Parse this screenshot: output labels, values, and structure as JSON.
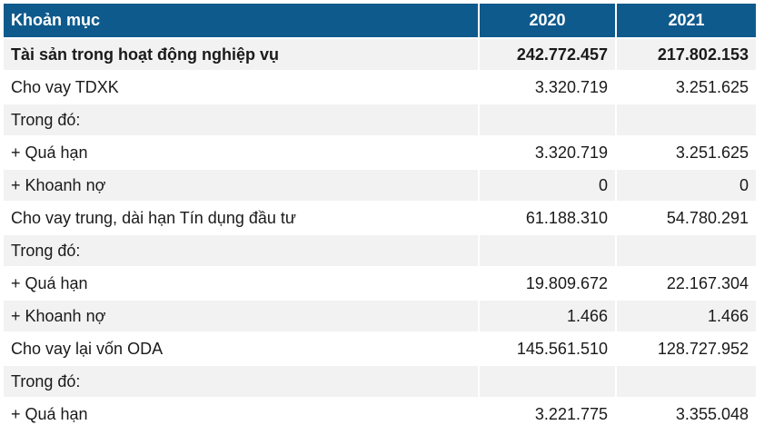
{
  "table": {
    "headers": [
      "Khoản mục",
      "2020",
      "2021"
    ],
    "rows": [
      {
        "label": "Tài sản trong hoạt động nghiệp vụ",
        "y2020": "242.772.457",
        "y2021": "217.802.153",
        "bold": true
      },
      {
        "label": "Cho vay TDXK",
        "y2020": "3.320.719",
        "y2021": "3.251.625"
      },
      {
        "label": "Trong đó:",
        "y2020": "",
        "y2021": ""
      },
      {
        "label": "+ Quá hạn",
        "y2020": "3.320.719",
        "y2021": "3.251.625"
      },
      {
        "label": "+ Khoanh nợ",
        "y2020": "0",
        "y2021": "0"
      },
      {
        "label": "Cho vay trung, dài hạn Tín dụng đầu tư",
        "y2020": "61.188.310",
        "y2021": "54.780.291"
      },
      {
        "label": "Trong đó:",
        "y2020": "",
        "y2021": ""
      },
      {
        "label": "+ Quá hạn",
        "y2020": "19.809.672",
        "y2021": "22.167.304"
      },
      {
        "label": "+ Khoanh nợ",
        "y2020": "1.466",
        "y2021": "1.466"
      },
      {
        "label": "Cho vay lại vốn ODA",
        "y2020": "145.561.510",
        "y2021": "128.727.952"
      },
      {
        "label": "Trong đó:",
        "y2020": "",
        "y2021": ""
      },
      {
        "label": "+ Quá hạn",
        "y2020": "3.221.775",
        "y2021": "3.355.048"
      }
    ]
  },
  "colors": {
    "header_bg": "#0f5a8c",
    "header_text": "#ffffff",
    "row_stripe": "#f2f2f2",
    "row_plain": "#ffffff"
  }
}
